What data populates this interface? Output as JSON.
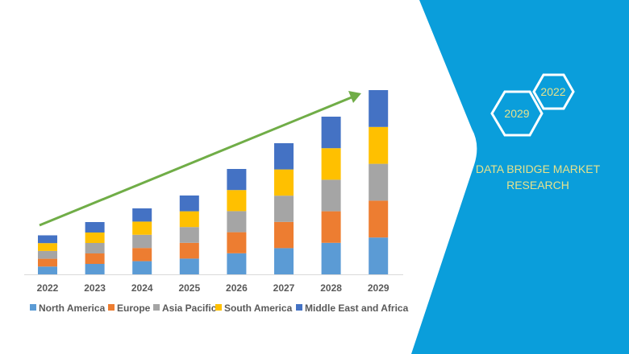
{
  "chart_data": {
    "type": "bar",
    "stacked": true,
    "title": "",
    "xlabel": "",
    "ylabel": "",
    "ylim": [
      0,
      240
    ],
    "grid": false,
    "legend_position": "bottom",
    "categories": [
      "2022",
      "2023",
      "2024",
      "2025",
      "2026",
      "2027",
      "2028",
      "2029"
    ],
    "series": [
      {
        "name": "North America",
        "color": "#5B9BD5",
        "values": [
          9.7,
          13,
          16.4,
          19.6,
          26.2,
          32.6,
          39.2,
          45.8
        ]
      },
      {
        "name": "Europe",
        "color": "#ED7D31",
        "values": [
          9.7,
          13,
          16.4,
          19.6,
          26.2,
          32.6,
          39.2,
          45.8
        ]
      },
      {
        "name": "Asia Pacific",
        "color": "#A5A5A5",
        "values": [
          9.7,
          13,
          16.4,
          19.6,
          26.2,
          32.6,
          39.2,
          45.8
        ]
      },
      {
        "name": "South America",
        "color": "#FFC000",
        "values": [
          9.7,
          13,
          16.4,
          19.6,
          26.2,
          32.6,
          39.2,
          45.8
        ]
      },
      {
        "name": "Middle East and Africa",
        "color": "#4472C4",
        "values": [
          9.7,
          13,
          16.4,
          19.6,
          26.2,
          32.6,
          39.2,
          45.8
        ]
      }
    ],
    "trend_arrow_color": "#70AD47"
  },
  "panel": {
    "background": "#0A9EDB",
    "hex_years": [
      "2029",
      "2022"
    ],
    "brand_lines": [
      "DATA BRIDGE MARKET",
      "RESEARCH"
    ]
  }
}
